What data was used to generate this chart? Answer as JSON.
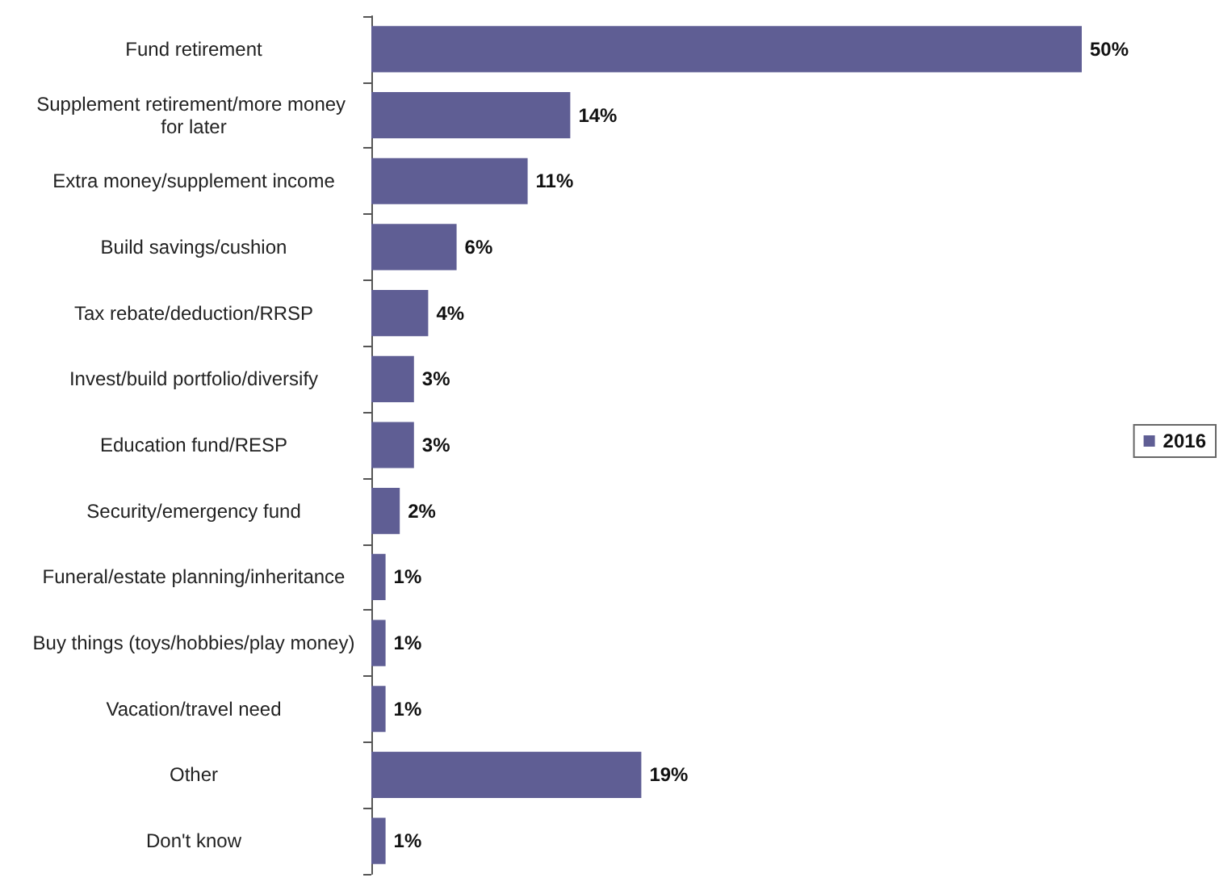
{
  "chart_data": {
    "type": "bar",
    "orientation": "horizontal",
    "categories": [
      "Fund retirement",
      "Supplement retirement/more money for later",
      "Extra money/supplement income",
      "Build savings/cushion",
      "Tax rebate/deduction/RRSP",
      "Invest/build portfolio/diversify",
      "Education fund/RESP",
      "Security/emergency fund",
      "Funeral/estate planning/inheritance",
      "Buy things (toys/hobbies/play money)",
      "Vacation/travel need",
      "Other",
      "Don't know"
    ],
    "series": [
      {
        "name": "2016",
        "color": "#5f5e94",
        "values": [
          50,
          14,
          11,
          6,
          4,
          3,
          3,
          2,
          1,
          1,
          1,
          19,
          1
        ],
        "value_labels": [
          "50%",
          "14%",
          "11%",
          "6%",
          "4%",
          "3%",
          "3%",
          "2%",
          "1%",
          "1%",
          "1%",
          "19%",
          "1%"
        ]
      }
    ],
    "legend": "right",
    "grid": false
  }
}
